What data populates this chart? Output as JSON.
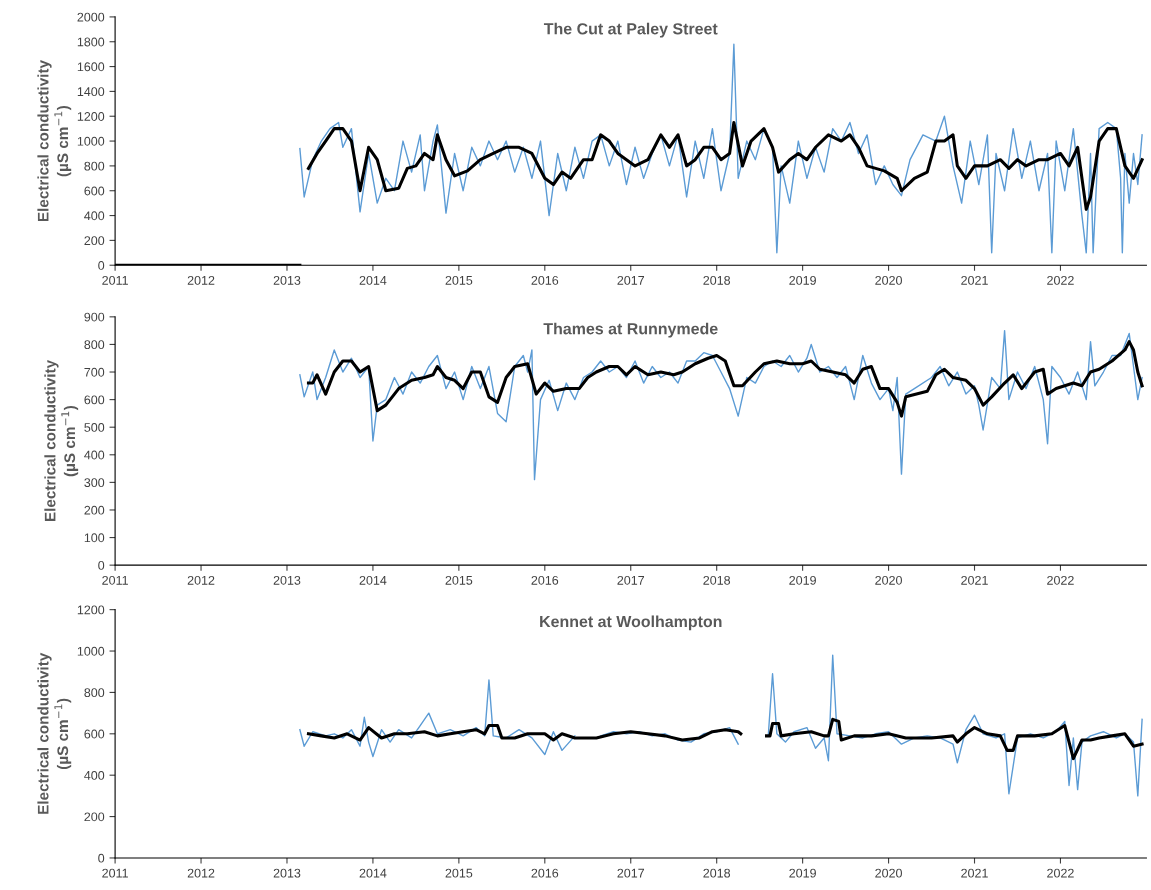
{
  "chart_data": [
    {
      "type": "line",
      "title": "The Cut at Paley Street",
      "ylabel": "Electrical conductivity\n(µS cm$^{−1}$)",
      "xlim": [
        2011,
        2023
      ],
      "xticks": [
        2011,
        2012,
        2013,
        2014,
        2015,
        2016,
        2017,
        2018,
        2019,
        2020,
        2021,
        2022
      ],
      "ylim": [
        0,
        2000
      ],
      "yticks": [
        0,
        200,
        400,
        600,
        800,
        1000,
        1200,
        1400,
        1600,
        1800,
        2000
      ],
      "grid": false,
      "series": [
        {
          "color": "#5b9bd5",
          "x": [
            2013.15,
            2013.2,
            2013.3,
            2013.4,
            2013.5,
            2013.6,
            2013.65,
            2013.75,
            2013.85,
            2013.95,
            2014.05,
            2014.15,
            2014.25,
            2014.35,
            2014.45,
            2014.55,
            2014.6,
            2014.7,
            2014.75,
            2014.85,
            2014.95,
            2015.05,
            2015.15,
            2015.25,
            2015.35,
            2015.45,
            2015.55,
            2015.65,
            2015.75,
            2015.85,
            2015.95,
            2016.05,
            2016.15,
            2016.25,
            2016.35,
            2016.45,
            2016.55,
            2016.65,
            2016.75,
            2016.85,
            2016.95,
            2017.05,
            2017.15,
            2017.25,
            2017.35,
            2017.45,
            2017.55,
            2017.65,
            2017.75,
            2017.85,
            2017.95,
            2018.05,
            2018.15,
            2018.2,
            2018.25,
            2018.35,
            2018.45,
            2018.55,
            2018.65,
            2018.7,
            2018.75,
            2018.85,
            2018.95,
            2019.05,
            2019.15,
            2019.25,
            2019.35,
            2019.45,
            2019.55,
            2019.65,
            2019.75,
            2019.85,
            2019.95,
            2020.05,
            2020.15,
            2020.25,
            2020.4,
            2020.55,
            2020.65,
            2020.75,
            2020.85,
            2020.95,
            2021.05,
            2021.15,
            2021.2,
            2021.25,
            2021.35,
            2021.45,
            2021.55,
            2021.65,
            2021.75,
            2021.85,
            2021.9,
            2021.95,
            2022.05,
            2022.15,
            2022.25,
            2022.3,
            2022.35,
            2022.38,
            2022.45,
            2022.55,
            2022.65,
            2022.7,
            2022.72,
            2022.75,
            2022.8,
            2022.85,
            2022.9,
            2022.95
          ],
          "values": [
            940,
            550,
            850,
            1000,
            1100,
            1150,
            950,
            1100,
            430,
            900,
            500,
            700,
            600,
            1000,
            750,
            1050,
            600,
            1000,
            1130,
            420,
            900,
            600,
            950,
            800,
            1000,
            850,
            1000,
            750,
            950,
            700,
            1000,
            400,
            900,
            600,
            950,
            700,
            1000,
            1050,
            800,
            1000,
            650,
            950,
            700,
            900,
            1050,
            800,
            1050,
            550,
            1000,
            700,
            1100,
            600,
            900,
            1780,
            700,
            1000,
            850,
            1100,
            950,
            100,
            800,
            500,
            1000,
            700,
            950,
            750,
            1100,
            1000,
            1150,
            900,
            1050,
            650,
            800,
            650,
            560,
            850,
            1050,
            1000,
            1200,
            800,
            500,
            1000,
            650,
            1050,
            100,
            900,
            600,
            1100,
            700,
            1000,
            600,
            900,
            100,
            1000,
            600,
            1100,
            400,
            100,
            900,
            100,
            1100,
            1150,
            1100,
            700,
            100,
            900,
            500,
            900,
            650,
            1050
          ]
        },
        {
          "color": "#000000",
          "x": [
            2011,
            2013.15,
            2013.2,
            2013.25,
            2013.35,
            2013.45,
            2013.55,
            2013.65,
            2013.75,
            2013.85,
            2013.95,
            2014.05,
            2014.15,
            2014.3,
            2014.4,
            2014.5,
            2014.6,
            2014.7,
            2014.75,
            2014.85,
            2014.95,
            2015.1,
            2015.25,
            2015.4,
            2015.55,
            2015.7,
            2015.85,
            2016.0,
            2016.1,
            2016.2,
            2016.3,
            2016.45,
            2016.55,
            2016.65,
            2016.75,
            2016.85,
            2016.95,
            2017.05,
            2017.2,
            2017.35,
            2017.45,
            2017.55,
            2017.65,
            2017.75,
            2017.85,
            2017.95,
            2018.05,
            2018.15,
            2018.2,
            2018.3,
            2018.4,
            2018.55,
            2018.65,
            2018.72,
            2018.85,
            2018.95,
            2019.05,
            2019.15,
            2019.3,
            2019.45,
            2019.55,
            2019.65,
            2019.75,
            2019.85,
            2019.95,
            2020.1,
            2020.15,
            2020.3,
            2020.45,
            2020.55,
            2020.65,
            2020.75,
            2020.8,
            2020.9,
            2021.0,
            2021.15,
            2021.3,
            2021.4,
            2021.5,
            2021.6,
            2021.75,
            2021.85,
            2022.0,
            2022.1,
            2022.2,
            2022.3,
            2022.35,
            2022.45,
            2022.55,
            2022.65,
            2022.75,
            2022.85,
            2022.95
          ],
          "values": [
            0,
            0,
            null,
            780,
            900,
            1000,
            1100,
            1100,
            1000,
            600,
            950,
            850,
            600,
            620,
            780,
            800,
            900,
            850,
            1050,
            850,
            720,
            760,
            850,
            900,
            950,
            950,
            900,
            700,
            650,
            750,
            700,
            850,
            850,
            1050,
            1000,
            900,
            850,
            800,
            850,
            1050,
            950,
            1050,
            800,
            850,
            950,
            950,
            850,
            900,
            1150,
            800,
            1000,
            1100,
            950,
            750,
            850,
            900,
            850,
            950,
            1050,
            1000,
            1050,
            950,
            800,
            780,
            760,
            700,
            600,
            700,
            750,
            1000,
            1000,
            1050,
            800,
            700,
            800,
            800,
            850,
            780,
            850,
            800,
            850,
            850,
            900,
            800,
            950,
            450,
            550,
            1000,
            1100,
            1100,
            800,
            700,
            850
          ]
        }
      ]
    },
    {
      "type": "line",
      "title": "Thames at Runnymede",
      "ylabel": "Electrical conductivity\n(µS cm$^{−1}$)",
      "xlim": [
        2011,
        2023
      ],
      "xticks": [
        2011,
        2012,
        2013,
        2014,
        2015,
        2016,
        2017,
        2018,
        2019,
        2020,
        2021,
        2022
      ],
      "ylim": [
        0,
        900
      ],
      "yticks": [
        0,
        100,
        200,
        300,
        400,
        500,
        600,
        700,
        800,
        900
      ],
      "grid": false,
      "series": [
        {
          "color": "#5b9bd5",
          "x": [
            2013.15,
            2013.2,
            2013.3,
            2013.35,
            2013.45,
            2013.55,
            2013.65,
            2013.75,
            2013.85,
            2013.95,
            2014.0,
            2014.05,
            2014.15,
            2014.25,
            2014.35,
            2014.45,
            2014.55,
            2014.65,
            2014.75,
            2014.85,
            2014.95,
            2015.05,
            2015.15,
            2015.25,
            2015.35,
            2015.45,
            2015.55,
            2015.65,
            2015.75,
            2015.8,
            2015.85,
            2015.88,
            2015.95,
            2016.05,
            2016.15,
            2016.25,
            2016.35,
            2016.45,
            2016.55,
            2016.65,
            2016.75,
            2016.85,
            2016.95,
            2017.05,
            2017.15,
            2017.25,
            2017.35,
            2017.45,
            2017.55,
            2017.65,
            2017.75,
            2017.85,
            2017.95,
            2018.05,
            2018.15,
            2018.25,
            2018.35,
            2018.45,
            2018.55,
            2018.65,
            2018.75,
            2018.85,
            2018.95,
            2019.05,
            2019.1,
            2019.2,
            2019.3,
            2019.4,
            2019.5,
            2019.6,
            2019.7,
            2019.8,
            2019.9,
            2020.0,
            2020.05,
            2020.1,
            2020.15,
            2020.2,
            2020.3,
            2020.5,
            2020.6,
            2020.7,
            2020.8,
            2020.9,
            2021.0,
            2021.05,
            2021.1,
            2021.2,
            2021.3,
            2021.35,
            2021.4,
            2021.5,
            2021.6,
            2021.7,
            2021.8,
            2021.85,
            2021.9,
            2022.0,
            2022.1,
            2022.2,
            2022.3,
            2022.35,
            2022.4,
            2022.5,
            2022.6,
            2022.7,
            2022.8,
            2022.85,
            2022.9,
            2022.95
          ],
          "values": [
            690,
            610,
            700,
            600,
            680,
            780,
            700,
            750,
            680,
            720,
            450,
            580,
            600,
            680,
            620,
            700,
            660,
            720,
            760,
            640,
            700,
            600,
            720,
            640,
            720,
            550,
            520,
            720,
            760,
            700,
            780,
            310,
            600,
            670,
            560,
            660,
            600,
            680,
            700,
            740,
            700,
            720,
            680,
            740,
            660,
            720,
            680,
            700,
            660,
            740,
            740,
            770,
            760,
            700,
            640,
            540,
            680,
            660,
            720,
            740,
            720,
            760,
            700,
            750,
            800,
            700,
            720,
            680,
            720,
            600,
            760,
            660,
            600,
            640,
            560,
            680,
            330,
            620,
            640,
            680,
            720,
            650,
            700,
            620,
            650,
            580,
            490,
            680,
            640,
            850,
            600,
            700,
            640,
            720,
            600,
            440,
            720,
            680,
            620,
            700,
            600,
            810,
            650,
            700,
            760,
            760,
            840,
            720,
            600,
            680
          ]
        },
        {
          "color": "#000000",
          "x": [
            2013.25,
            2013.3,
            2013.35,
            2013.45,
            2013.55,
            2013.65,
            2013.75,
            2013.85,
            2013.95,
            2014.05,
            2014.15,
            2014.3,
            2014.45,
            2014.6,
            2014.7,
            2014.75,
            2014.85,
            2014.95,
            2015.05,
            2015.15,
            2015.25,
            2015.35,
            2015.45,
            2015.55,
            2015.65,
            2015.8,
            2015.9,
            2016.0,
            2016.1,
            2016.25,
            2016.4,
            2016.5,
            2016.6,
            2016.75,
            2016.85,
            2016.95,
            2017.05,
            2017.2,
            2017.35,
            2017.5,
            2017.6,
            2017.75,
            2017.9,
            2018.0,
            2018.1,
            2018.2,
            2018.3,
            2018.45,
            2018.55,
            2018.7,
            2018.85,
            2019.0,
            2019.1,
            2019.2,
            2019.35,
            2019.5,
            2019.6,
            2019.7,
            2019.8,
            2019.9,
            2020.0,
            2020.1,
            2020.15,
            2020.2,
            2020.45,
            2020.55,
            2020.65,
            2020.75,
            2020.9,
            2021.0,
            2021.1,
            2021.2,
            2021.35,
            2021.45,
            2021.55,
            2021.7,
            2021.8,
            2021.85,
            2021.95,
            2022.05,
            2022.15,
            2022.25,
            2022.35,
            2022.45,
            2022.6,
            2022.75,
            2022.8,
            2022.85,
            2022.9,
            2022.95
          ],
          "values": [
            660,
            660,
            690,
            620,
            700,
            740,
            740,
            700,
            720,
            560,
            580,
            640,
            670,
            680,
            690,
            720,
            680,
            670,
            640,
            700,
            700,
            610,
            590,
            680,
            720,
            730,
            620,
            660,
            630,
            640,
            640,
            680,
            700,
            720,
            720,
            690,
            720,
            690,
            700,
            690,
            700,
            730,
            750,
            760,
            740,
            650,
            650,
            700,
            730,
            740,
            730,
            730,
            740,
            710,
            700,
            690,
            660,
            710,
            720,
            640,
            640,
            590,
            540,
            610,
            630,
            690,
            710,
            680,
            670,
            640,
            580,
            610,
            660,
            690,
            640,
            700,
            710,
            620,
            640,
            650,
            660,
            650,
            700,
            710,
            740,
            780,
            810,
            780,
            700,
            650
          ]
        }
      ]
    },
    {
      "type": "line",
      "title": "Kennet at Woolhampton",
      "ylabel": "Electrical conductivity\n(µS cm$^{−1}$)",
      "xlim": [
        2011,
        2023
      ],
      "xticks": [
        2011,
        2012,
        2013,
        2014,
        2015,
        2016,
        2017,
        2018,
        2019,
        2020,
        2021,
        2022
      ],
      "ylim": [
        0,
        1200
      ],
      "yticks": [
        0,
        200,
        400,
        600,
        800,
        1000,
        1200
      ],
      "grid": false,
      "series": [
        {
          "color": "#5b9bd5",
          "x": [
            2013.15,
            2013.2,
            2013.3,
            2013.45,
            2013.55,
            2013.65,
            2013.75,
            2013.85,
            2013.9,
            2013.95,
            2014.0,
            2014.1,
            2014.2,
            2014.3,
            2014.45,
            2014.55,
            2014.65,
            2014.75,
            2014.9,
            2015.05,
            2015.2,
            2015.3,
            2015.35,
            2015.4,
            2015.55,
            2015.7,
            2015.85,
            2016.0,
            2016.1,
            2016.2,
            2016.35,
            2016.5,
            2016.65,
            2016.8,
            2016.95,
            2017.1,
            2017.25,
            2017.4,
            2017.55,
            2017.7,
            2017.85,
            2018.0,
            2018.15,
            2018.25,
            2018.4,
            2018.6,
            2018.65,
            2018.7,
            2018.8,
            2018.9,
            2019.05,
            2019.15,
            2019.25,
            2019.3,
            2019.35,
            2019.4,
            2019.55,
            2019.7,
            2019.85,
            2020.0,
            2020.15,
            2020.3,
            2020.45,
            2020.6,
            2020.75,
            2020.8,
            2020.9,
            2021.0,
            2021.1,
            2021.25,
            2021.35,
            2021.4,
            2021.5,
            2021.65,
            2021.8,
            2021.95,
            2022.05,
            2022.1,
            2022.15,
            2022.2,
            2022.25,
            2022.35,
            2022.5,
            2022.65,
            2022.75,
            2022.85,
            2022.9,
            2022.95
          ],
          "values": [
            620,
            540,
            610,
            590,
            600,
            580,
            620,
            540,
            680,
            560,
            490,
            620,
            560,
            620,
            580,
            640,
            700,
            600,
            620,
            590,
            630,
            590,
            860,
            590,
            580,
            620,
            580,
            500,
            610,
            520,
            590,
            null,
            590,
            610,
            600,
            610,
            590,
            600,
            570,
            560,
            600,
            610,
            630,
            550,
            null,
            590,
            890,
            600,
            560,
            610,
            630,
            530,
            580,
            470,
            980,
            600,
            590,
            580,
            600,
            610,
            550,
            580,
            590,
            580,
            550,
            460,
            620,
            690,
            600,
            580,
            600,
            310,
            580,
            600,
            580,
            610,
            660,
            350,
            580,
            330,
            560,
            590,
            610,
            580,
            600,
            560,
            300,
            670
          ]
        },
        {
          "color": "#000000",
          "x": [
            2013.25,
            2013.4,
            2013.55,
            2013.7,
            2013.85,
            2013.95,
            2014.1,
            2014.25,
            2014.4,
            2014.6,
            2014.75,
            2014.9,
            2015.05,
            2015.2,
            2015.3,
            2015.35,
            2015.45,
            2015.5,
            2015.65,
            2015.8,
            2016.0,
            2016.1,
            2016.2,
            2016.35,
            2016.6,
            2016.8,
            2017.0,
            2017.2,
            2017.4,
            2017.6,
            2017.8,
            2017.95,
            2018.1,
            2018.25,
            2018.28,
            2018.4,
            2018.58,
            2018.62,
            2018.65,
            2018.72,
            2018.75,
            2018.9,
            2019.1,
            2019.25,
            2019.3,
            2019.35,
            2019.42,
            2019.45,
            2019.6,
            2019.8,
            2020.0,
            2020.2,
            2020.5,
            2020.75,
            2020.8,
            2020.9,
            2021.0,
            2021.15,
            2021.3,
            2021.38,
            2021.45,
            2021.5,
            2021.7,
            2021.9,
            2022.05,
            2022.1,
            2022.15,
            2022.25,
            2022.35,
            2022.45,
            2022.6,
            2022.75,
            2022.85,
            2022.95
          ],
          "values": [
            600,
            590,
            580,
            600,
            570,
            630,
            580,
            600,
            600,
            610,
            590,
            600,
            610,
            620,
            600,
            640,
            640,
            580,
            580,
            600,
            600,
            570,
            600,
            580,
            580,
            600,
            610,
            600,
            590,
            570,
            580,
            610,
            620,
            610,
            600,
            null,
            590,
            590,
            650,
            650,
            590,
            600,
            610,
            590,
            590,
            670,
            660,
            570,
            590,
            590,
            600,
            580,
            580,
            590,
            560,
            600,
            630,
            600,
            590,
            520,
            520,
            590,
            590,
            600,
            640,
            560,
            480,
            570,
            570,
            580,
            590,
            600,
            540,
            550
          ]
        }
      ]
    }
  ]
}
